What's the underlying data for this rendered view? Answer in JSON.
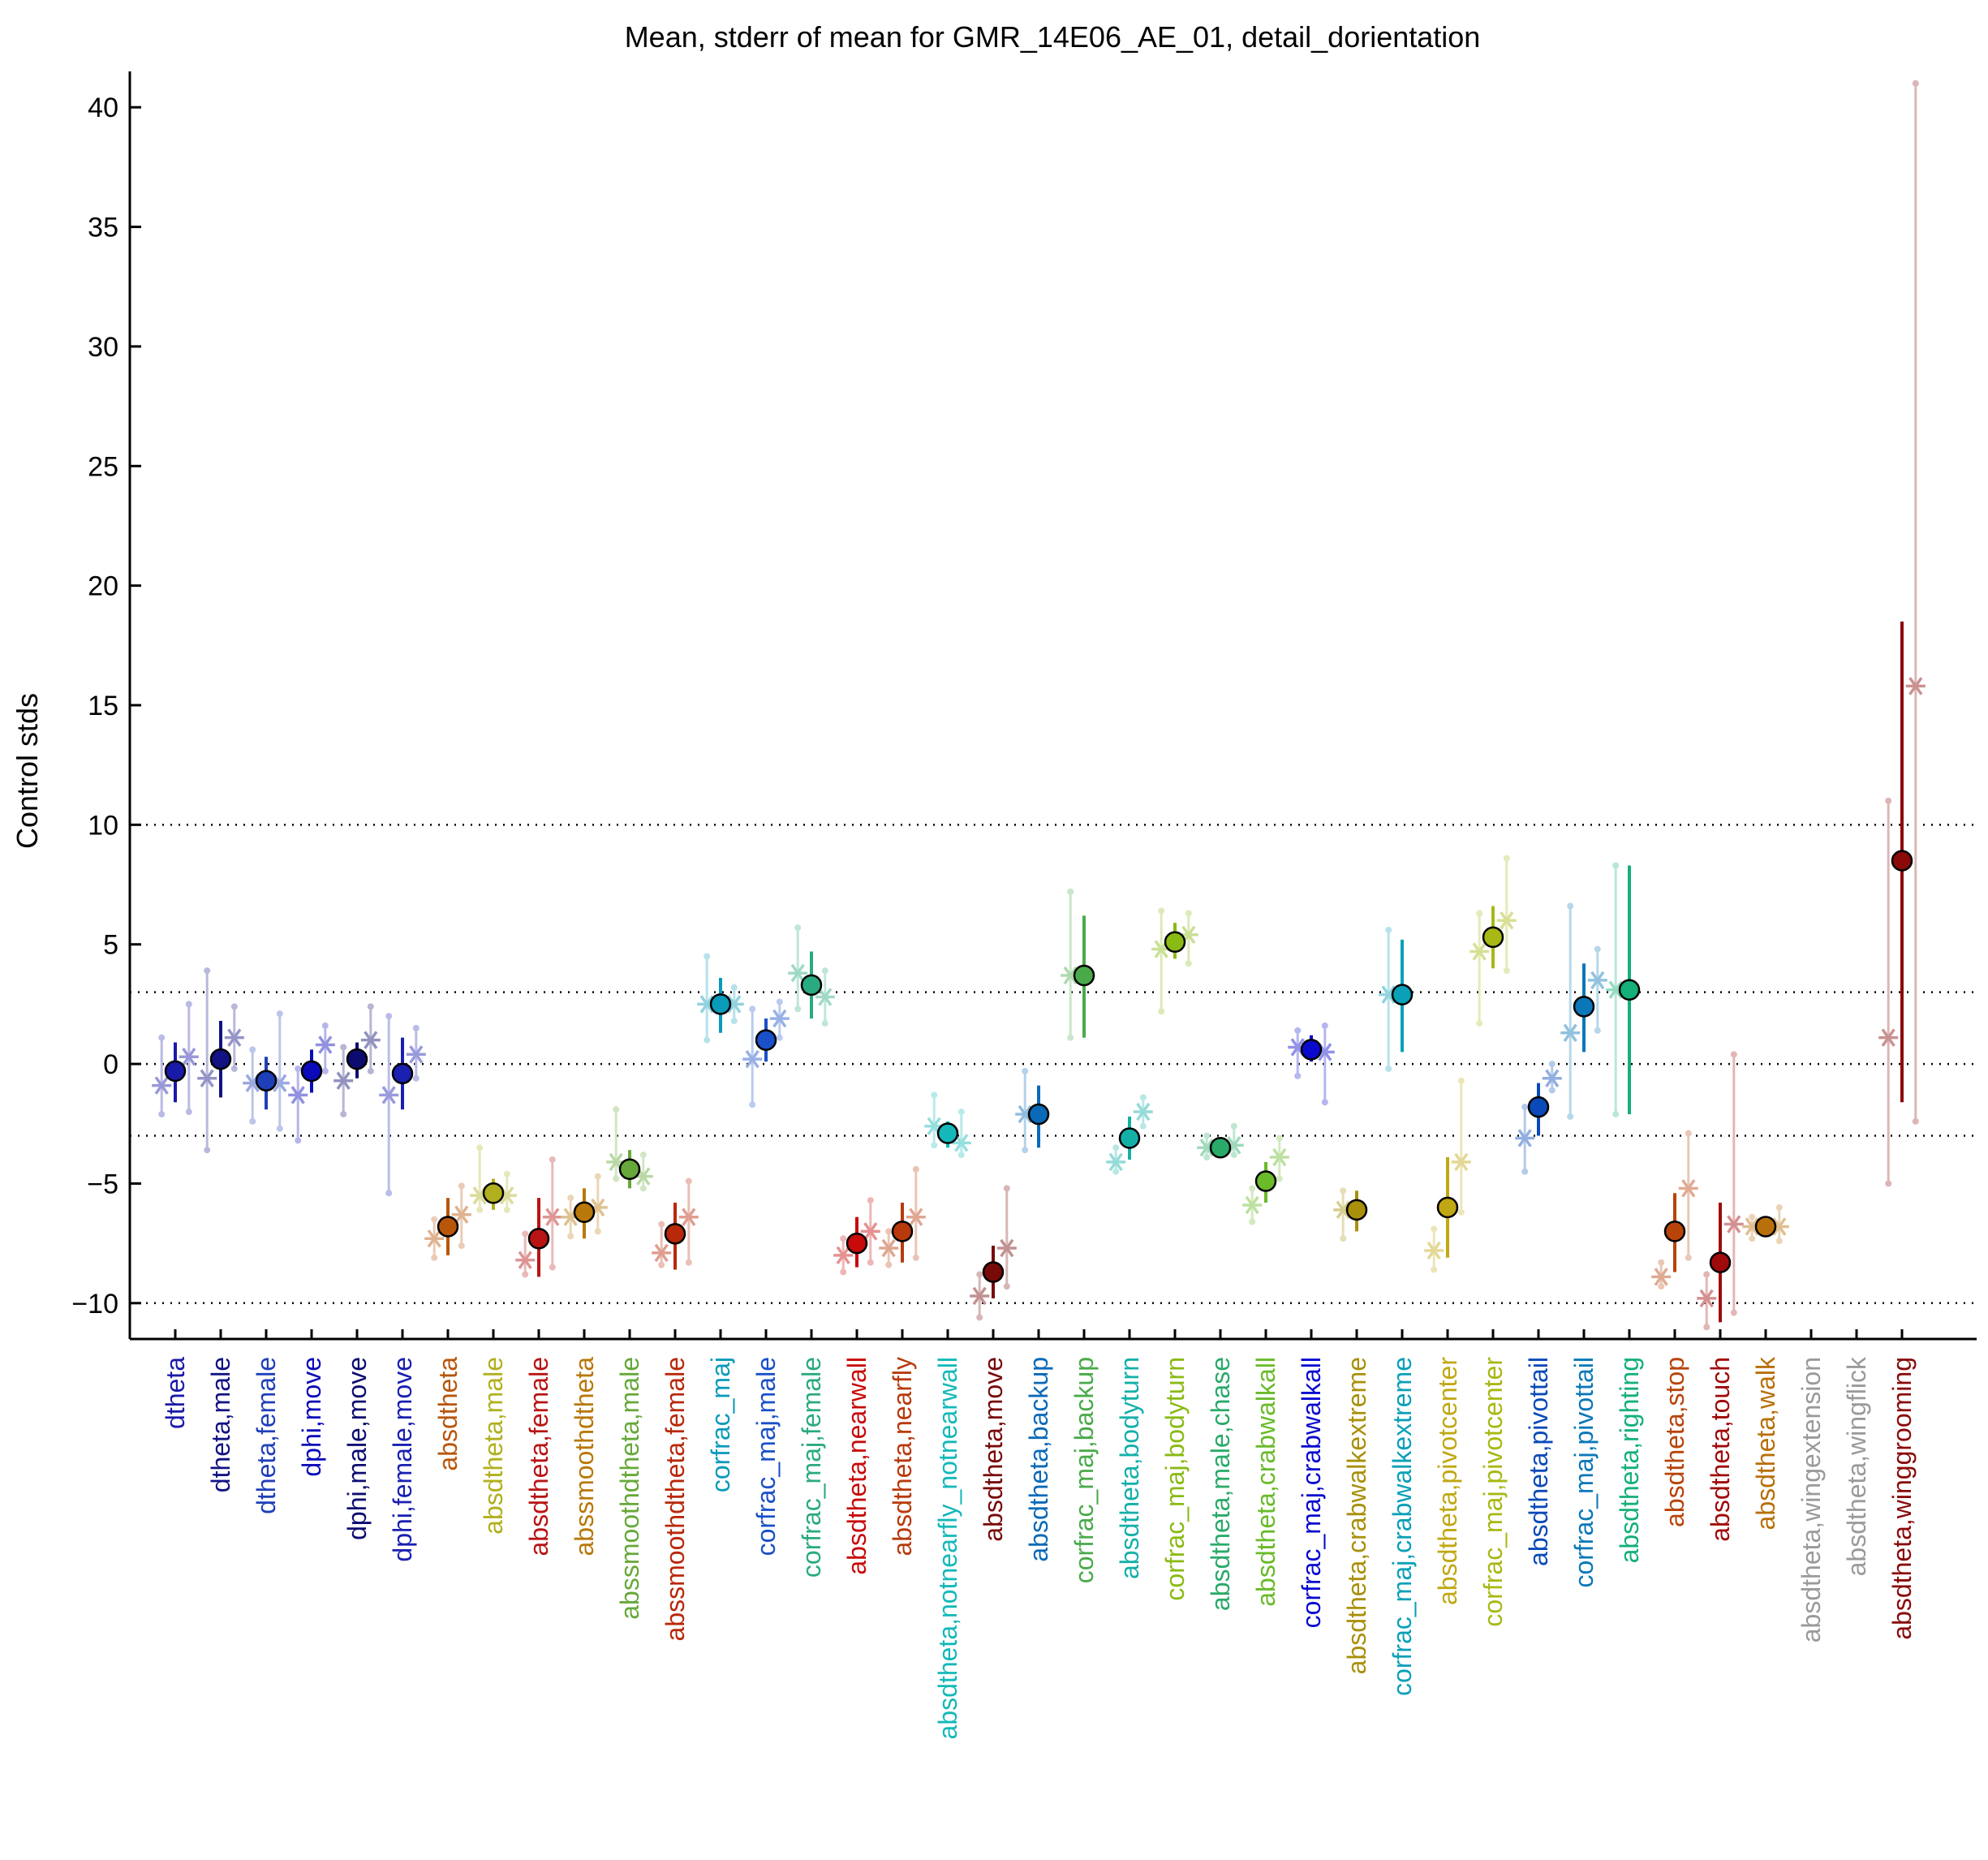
{
  "chart_data": {
    "type": "scatter",
    "title": "Mean, stderr of mean for GMR_14E06_AE_01, detail_dorientation",
    "xlabel": "",
    "ylabel": "Control stds",
    "ylim": [
      -11.5,
      41.5
    ],
    "yticks": [
      -10,
      -5,
      0,
      5,
      10,
      15,
      20,
      25,
      30,
      35,
      40
    ],
    "ytick_labels": [
      "−10",
      "−5",
      "0",
      "5",
      "10",
      "15",
      "20",
      "25",
      "30",
      "35",
      "40"
    ],
    "reference_lines": [
      10,
      3,
      0,
      -3,
      -10
    ],
    "legend": "none",
    "categories": [
      {
        "label": "dtheta",
        "color": "#1a1aa8",
        "mean": -0.3,
        "lo": -1.6,
        "hi": 0.9,
        "sub": [
          {
            "dx": -0.3,
            "v": -0.9,
            "lo": -2.1,
            "hi": 1.1
          },
          {
            "dx": 0.3,
            "v": 0.3,
            "lo": -2.0,
            "hi": 2.5
          }
        ]
      },
      {
        "label": "dtheta,male",
        "color": "#121284",
        "mean": 0.2,
        "lo": -1.4,
        "hi": 1.8,
        "sub": [
          {
            "dx": -0.3,
            "v": -0.6,
            "lo": -3.6,
            "hi": 3.9
          },
          {
            "dx": 0.3,
            "v": 1.1,
            "lo": -0.2,
            "hi": 2.4
          }
        ]
      },
      {
        "label": "dtheta,female",
        "color": "#1f3fb8",
        "mean": -0.7,
        "lo": -1.9,
        "hi": 0.3,
        "sub": [
          {
            "dx": -0.3,
            "v": -0.8,
            "lo": -2.4,
            "hi": 0.6
          },
          {
            "dx": 0.3,
            "v": -0.8,
            "lo": -2.7,
            "hi": 2.1
          }
        ]
      },
      {
        "label": "dphi,move",
        "color": "#0a0aba",
        "mean": -0.3,
        "lo": -1.2,
        "hi": 0.6,
        "sub": [
          {
            "dx": -0.3,
            "v": -1.3,
            "lo": -3.2,
            "hi": -0.2
          },
          {
            "dx": 0.3,
            "v": 0.8,
            "lo": -0.3,
            "hi": 1.6
          }
        ]
      },
      {
        "label": "dphi,male,move",
        "color": "#0c0c70",
        "mean": 0.2,
        "lo": -0.6,
        "hi": 0.9,
        "sub": [
          {
            "dx": -0.3,
            "v": -0.7,
            "lo": -2.1,
            "hi": 0.7
          },
          {
            "dx": 0.3,
            "v": 1.0,
            "lo": -0.3,
            "hi": 2.4
          }
        ]
      },
      {
        "label": "dphi,female,move",
        "color": "#1a20b0",
        "mean": -0.4,
        "lo": -1.9,
        "hi": 1.1,
        "sub": [
          {
            "dx": -0.3,
            "v": -1.3,
            "lo": -5.4,
            "hi": 2.0
          },
          {
            "dx": 0.3,
            "v": 0.4,
            "lo": -0.6,
            "hi": 1.5
          }
        ]
      },
      {
        "label": "absdtheta",
        "color": "#b8560a",
        "mean": -6.8,
        "lo": -8.0,
        "hi": -5.6,
        "sub": [
          {
            "dx": -0.3,
            "v": -7.3,
            "lo": -8.1,
            "hi": -6.5
          },
          {
            "dx": 0.3,
            "v": -6.3,
            "lo": -7.6,
            "hi": -5.1
          }
        ]
      },
      {
        "label": "absdtheta,male",
        "color": "#b0b01e",
        "mean": -5.4,
        "lo": -6.1,
        "hi": -4.8,
        "sub": [
          {
            "dx": -0.3,
            "v": -5.5,
            "lo": -6.1,
            "hi": -3.5
          },
          {
            "dx": 0.3,
            "v": -5.5,
            "lo": -6.1,
            "hi": -4.6
          }
        ]
      },
      {
        "label": "absdtheta,female",
        "color": "#b81414",
        "mean": -7.3,
        "lo": -8.9,
        "hi": -5.6,
        "sub": [
          {
            "dx": -0.3,
            "v": -8.2,
            "lo": -8.8,
            "hi": -7.1
          },
          {
            "dx": 0.3,
            "v": -6.4,
            "lo": -8.5,
            "hi": -4.0
          }
        ]
      },
      {
        "label": "abssmoothdtheta",
        "color": "#b8780a",
        "mean": -6.2,
        "lo": -7.3,
        "hi": -5.2,
        "sub": [
          {
            "dx": -0.3,
            "v": -6.4,
            "lo": -7.2,
            "hi": -5.6
          },
          {
            "dx": 0.3,
            "v": -6.0,
            "lo": -7.0,
            "hi": -4.7
          }
        ]
      },
      {
        "label": "abssmoothdtheta,male",
        "color": "#66a83a",
        "mean": -4.4,
        "lo": -5.2,
        "hi": -3.6,
        "sub": [
          {
            "dx": -0.3,
            "v": -4.1,
            "lo": -4.8,
            "hi": -1.9
          },
          {
            "dx": 0.3,
            "v": -4.7,
            "lo": -5.2,
            "hi": -3.8
          }
        ]
      },
      {
        "label": "abssmoothdtheta,female",
        "color": "#b8280a",
        "mean": -7.1,
        "lo": -8.6,
        "hi": -5.8,
        "sub": [
          {
            "dx": -0.3,
            "v": -7.9,
            "lo": -8.4,
            "hi": -6.7
          },
          {
            "dx": 0.3,
            "v": -6.4,
            "lo": -8.3,
            "hi": -4.9
          }
        ]
      },
      {
        "label": "corfrac_maj",
        "color": "#0a9aba",
        "mean": 2.5,
        "lo": 1.3,
        "hi": 3.6,
        "sub": [
          {
            "dx": -0.3,
            "v": 2.5,
            "lo": 1.0,
            "hi": 4.5
          },
          {
            "dx": 0.3,
            "v": 2.5,
            "lo": 1.8,
            "hi": 3.2
          }
        ]
      },
      {
        "label": "corfrac_maj,male",
        "color": "#1a50c8",
        "mean": 1.0,
        "lo": 0.1,
        "hi": 1.9,
        "sub": [
          {
            "dx": -0.3,
            "v": 0.2,
            "lo": -1.7,
            "hi": 2.3
          },
          {
            "dx": 0.3,
            "v": 1.9,
            "lo": 1.1,
            "hi": 2.6
          }
        ]
      },
      {
        "label": "corfrac_maj,female",
        "color": "#2aaa80",
        "mean": 3.3,
        "lo": 1.9,
        "hi": 4.7,
        "sub": [
          {
            "dx": -0.3,
            "v": 3.8,
            "lo": 2.3,
            "hi": 5.7
          },
          {
            "dx": 0.3,
            "v": 2.8,
            "lo": 1.7,
            "hi": 3.9
          }
        ]
      },
      {
        "label": "absdtheta,nearwall",
        "color": "#c80a0a",
        "mean": -7.5,
        "lo": -8.5,
        "hi": -6.4,
        "sub": [
          {
            "dx": -0.3,
            "v": -8.0,
            "lo": -8.7,
            "hi": -7.3
          },
          {
            "dx": 0.3,
            "v": -7.0,
            "lo": -8.3,
            "hi": -5.7
          }
        ]
      },
      {
        "label": "absdtheta,nearfly",
        "color": "#b83a0a",
        "mean": -7.0,
        "lo": -8.3,
        "hi": -5.8,
        "sub": [
          {
            "dx": -0.3,
            "v": -7.7,
            "lo": -8.4,
            "hi": -7.0
          },
          {
            "dx": 0.3,
            "v": -6.4,
            "lo": -8.1,
            "hi": -4.4
          }
        ]
      },
      {
        "label": "absdtheta,notnearfly_notnearwall",
        "color": "#14b8b8",
        "mean": -2.9,
        "lo": -3.5,
        "hi": -2.4,
        "sub": [
          {
            "dx": -0.3,
            "v": -2.6,
            "lo": -3.4,
            "hi": -1.3
          },
          {
            "dx": 0.3,
            "v": -3.3,
            "lo": -3.8,
            "hi": -2.0
          }
        ]
      },
      {
        "label": "absdtheta,move",
        "color": "#780a0a",
        "mean": -8.7,
        "lo": -9.8,
        "hi": -7.6,
        "sub": [
          {
            "dx": -0.3,
            "v": -9.7,
            "lo": -10.6,
            "hi": -8.8
          },
          {
            "dx": 0.3,
            "v": -7.7,
            "lo": -9.3,
            "hi": -5.2
          }
        ]
      },
      {
        "label": "absdtheta,backup",
        "color": "#0a6ab8",
        "mean": -2.1,
        "lo": -3.5,
        "hi": -0.9,
        "sub": [
          {
            "dx": -0.3,
            "v": -2.1,
            "lo": -3.6,
            "hi": -0.3
          }
        ]
      },
      {
        "label": "corfrac_maj,backup",
        "color": "#4aaa4a",
        "mean": 3.7,
        "lo": 1.1,
        "hi": 6.2,
        "sub": [
          {
            "dx": -0.3,
            "v": 3.7,
            "lo": 1.1,
            "hi": 7.2
          }
        ]
      },
      {
        "label": "absdtheta,bodyturn",
        "color": "#14b0a8",
        "mean": -3.1,
        "lo": -4.0,
        "hi": -2.2,
        "sub": [
          {
            "dx": -0.3,
            "v": -4.1,
            "lo": -4.5,
            "hi": -3.5
          },
          {
            "dx": 0.3,
            "v": -2.0,
            "lo": -2.6,
            "hi": -1.4
          }
        ]
      },
      {
        "label": "corfrac_maj,bodyturn",
        "color": "#8aba14",
        "mean": 5.1,
        "lo": 4.4,
        "hi": 5.9,
        "sub": [
          {
            "dx": -0.3,
            "v": 4.8,
            "lo": 2.2,
            "hi": 6.4
          },
          {
            "dx": 0.3,
            "v": 5.4,
            "lo": 4.2,
            "hi": 6.3
          }
        ]
      },
      {
        "label": "absdtheta,male,chase",
        "color": "#2aaa6a",
        "mean": -3.5,
        "lo": -3.8,
        "hi": -3.1,
        "sub": [
          {
            "dx": -0.3,
            "v": -3.5,
            "lo": -3.9,
            "hi": -3.0
          },
          {
            "dx": 0.3,
            "v": -3.4,
            "lo": -3.8,
            "hi": -2.6
          }
        ]
      },
      {
        "label": "absdtheta,crabwalkall",
        "color": "#6aba2a",
        "mean": -4.9,
        "lo": -5.8,
        "hi": -4.1,
        "sub": [
          {
            "dx": -0.3,
            "v": -5.9,
            "lo": -6.6,
            "hi": -5.2
          },
          {
            "dx": 0.3,
            "v": -3.9,
            "lo": -4.8,
            "hi": -3.1
          }
        ]
      },
      {
        "label": "corfrac_maj,crabwalkall",
        "color": "#0a0acf",
        "mean": 0.6,
        "lo": 0.1,
        "hi": 1.2,
        "sub": [
          {
            "dx": -0.3,
            "v": 0.7,
            "lo": -0.5,
            "hi": 1.4
          },
          {
            "dx": 0.3,
            "v": 0.5,
            "lo": -1.6,
            "hi": 1.6
          }
        ]
      },
      {
        "label": "absdtheta,crabwalkextreme",
        "color": "#a8900a",
        "mean": -6.1,
        "lo": -7.0,
        "hi": -5.3,
        "sub": [
          {
            "dx": -0.3,
            "v": -6.1,
            "lo": -7.3,
            "hi": -5.3
          }
        ]
      },
      {
        "label": "corfrac_maj,crabwalkextreme",
        "color": "#0aa0b8",
        "mean": 2.9,
        "lo": 0.5,
        "hi": 5.2,
        "sub": [
          {
            "dx": -0.3,
            "v": 2.9,
            "lo": -0.2,
            "hi": 5.6
          }
        ]
      },
      {
        "label": "absdtheta,pivotcenter",
        "color": "#c0a814",
        "mean": -6.0,
        "lo": -8.1,
        "hi": -3.9,
        "sub": [
          {
            "dx": -0.3,
            "v": -7.8,
            "lo": -8.6,
            "hi": -6.9
          },
          {
            "dx": 0.3,
            "v": -4.1,
            "lo": -6.2,
            "hi": -0.7
          }
        ]
      },
      {
        "label": "corfrac_maj,pivotcenter",
        "color": "#a8b814",
        "mean": 5.3,
        "lo": 4.0,
        "hi": 6.6,
        "sub": [
          {
            "dx": -0.3,
            "v": 4.7,
            "lo": 1.7,
            "hi": 6.3
          },
          {
            "dx": 0.3,
            "v": 6.0,
            "lo": 3.9,
            "hi": 8.6
          }
        ]
      },
      {
        "label": "absdtheta,pivottail",
        "color": "#0a4ab8",
        "mean": -1.8,
        "lo": -3.0,
        "hi": -0.8,
        "sub": [
          {
            "dx": -0.3,
            "v": -3.1,
            "lo": -4.5,
            "hi": -1.8
          },
          {
            "dx": 0.3,
            "v": -0.6,
            "lo": -1.1,
            "hi": 0.0
          }
        ]
      },
      {
        "label": "corfrac_maj,pivottail",
        "color": "#0a78b8",
        "mean": 2.4,
        "lo": 0.5,
        "hi": 4.2,
        "sub": [
          {
            "dx": -0.3,
            "v": 1.3,
            "lo": -2.2,
            "hi": 6.6
          },
          {
            "dx": 0.3,
            "v": 3.5,
            "lo": 1.4,
            "hi": 4.8
          }
        ]
      },
      {
        "label": "absdtheta,righting",
        "color": "#14b078",
        "mean": 3.1,
        "lo": -2.1,
        "hi": 8.3,
        "sub": [
          {
            "dx": -0.3,
            "v": 3.1,
            "lo": -2.1,
            "hi": 8.3
          }
        ]
      },
      {
        "label": "absdtheta,stop",
        "color": "#b8440a",
        "mean": -7.0,
        "lo": -8.7,
        "hi": -5.4,
        "sub": [
          {
            "dx": -0.3,
            "v": -8.9,
            "lo": -9.3,
            "hi": -8.3
          },
          {
            "dx": 0.3,
            "v": -5.2,
            "lo": -8.1,
            "hi": -2.9
          }
        ]
      },
      {
        "label": "absdtheta,touch",
        "color": "#a00a0a",
        "mean": -8.3,
        "lo": -10.8,
        "hi": -5.8,
        "sub": [
          {
            "dx": -0.3,
            "v": -9.8,
            "lo": -11.0,
            "hi": -8.8
          },
          {
            "dx": 0.3,
            "v": -6.7,
            "lo": -10.4,
            "hi": 0.4
          }
        ]
      },
      {
        "label": "absdtheta,walk",
        "color": "#b8700a",
        "mean": -6.8,
        "lo": -7.1,
        "hi": -6.5,
        "sub": [
          {
            "dx": -0.3,
            "v": -6.8,
            "lo": -7.3,
            "hi": -6.4
          },
          {
            "dx": 0.3,
            "v": -6.8,
            "lo": -7.4,
            "hi": -6.0
          }
        ]
      },
      {
        "label": "absdtheta,wingextension",
        "color": "#9a9a9a",
        "mean": null,
        "lo": null,
        "hi": null,
        "sub": []
      },
      {
        "label": "absdtheta,wingflick",
        "color": "#9a9a9a",
        "mean": null,
        "lo": null,
        "hi": null,
        "sub": []
      },
      {
        "label": "absdtheta,winggrooming",
        "color": "#8a0a0a",
        "mean": 8.5,
        "lo": -1.6,
        "hi": 18.5,
        "sub": [
          {
            "dx": -0.3,
            "v": 1.1,
            "lo": -5.0,
            "hi": 11.0
          },
          {
            "dx": 0.3,
            "v": 15.8,
            "lo": -2.4,
            "hi": 41.0
          }
        ]
      }
    ]
  }
}
